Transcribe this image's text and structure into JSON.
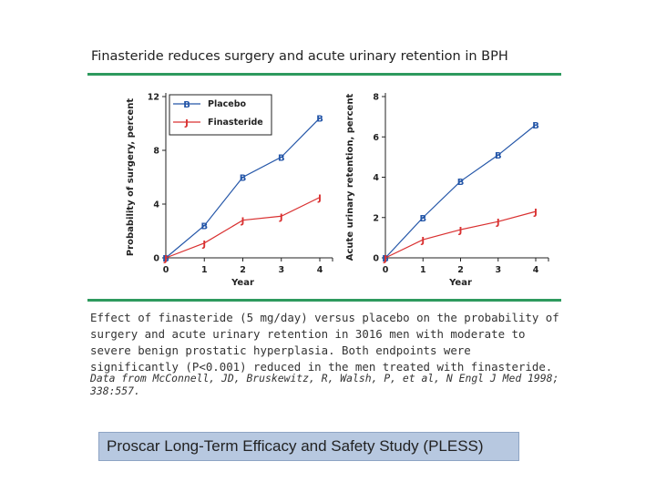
{
  "slide": {
    "title": "Finasteride reduces surgery and acute urinary retention in BPH",
    "caption": "Effect of finasteride (5 mg/day) versus placebo on the probability of surgery and acute urinary retention in 3016 men with moderate to severe benign prostatic hyperplasia. Both endpoints were significantly (P<0.001) reduced in the men treated with finasteride.",
    "source": "Data from McConnell, JD, Bruskewitz, R, Walsh, P, et al, N Engl J Med 1998; 338:557.",
    "study_box": "Proscar Long-Term Efficacy and Safety Study (PLESS)"
  },
  "colors": {
    "placebo": "#2456a8",
    "finasteride": "#d93030",
    "rule": "#2e9a5e",
    "study_box_bg": "#b7c8e0"
  },
  "chart_data": [
    {
      "type": "line",
      "ylabel": "Probability of surgery, percent",
      "xlabel": "Year",
      "x": [
        0,
        1,
        2,
        3,
        4
      ],
      "xticks": [
        "0",
        "1",
        "2",
        "3",
        "4"
      ],
      "ylim": [
        0,
        12
      ],
      "yticks": [
        0,
        4,
        8,
        12
      ],
      "legend_position": "top-left",
      "series": [
        {
          "name": "Placebo",
          "marker": "B",
          "color": "#2456a8",
          "values": [
            0,
            2.4,
            6.0,
            7.5,
            10.4
          ]
        },
        {
          "name": "Finasteride",
          "marker": "J",
          "color": "#d93030",
          "values": [
            0,
            1.1,
            2.8,
            3.1,
            4.5
          ]
        }
      ]
    },
    {
      "type": "line",
      "ylabel": "Acute urinary retention, percent",
      "xlabel": "Year",
      "x": [
        0,
        1,
        2,
        3,
        4
      ],
      "xticks": [
        "0",
        "1",
        "2",
        "3",
        "4"
      ],
      "ylim": [
        0,
        8
      ],
      "yticks": [
        0,
        2,
        4,
        6,
        8
      ],
      "series": [
        {
          "name": "Placebo",
          "marker": "B",
          "color": "#2456a8",
          "values": [
            0,
            2.0,
            3.8,
            5.1,
            6.6
          ]
        },
        {
          "name": "Finasteride",
          "marker": "J",
          "color": "#d93030",
          "values": [
            0,
            0.9,
            1.4,
            1.8,
            2.3
          ]
        }
      ]
    }
  ]
}
